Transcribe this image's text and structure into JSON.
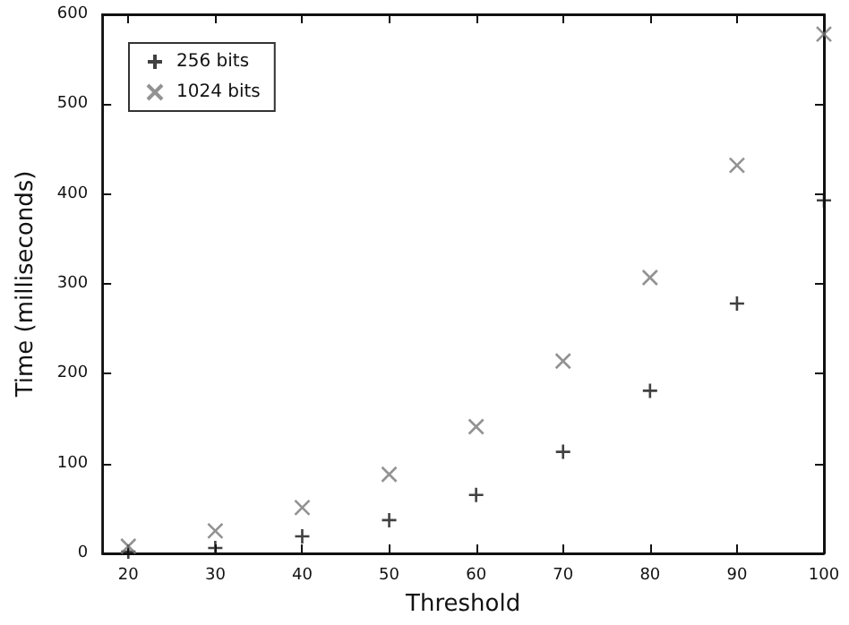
{
  "chart_data": {
    "type": "scatter",
    "xlabel": "Threshold",
    "ylabel": "Time (milliseconds)",
    "x": [
      20,
      30,
      40,
      50,
      60,
      70,
      80,
      90,
      100
    ],
    "series": [
      {
        "name": "256 bits",
        "color": "#111111",
        "values": [
          2,
          6,
          19,
          37,
          65,
          113,
          181,
          278,
          393
        ]
      },
      {
        "name": "1024 bits",
        "color": "#777777",
        "values": [
          8,
          25,
          51,
          88,
          141,
          214,
          307,
          432,
          578
        ]
      }
    ],
    "xlim": [
      17,
      100
    ],
    "xticks": [
      20,
      30,
      40,
      50,
      60,
      70,
      80,
      90,
      100
    ],
    "ylim": [
      0,
      600
    ],
    "yticks": [
      0,
      100,
      200,
      300,
      400,
      500,
      600
    ],
    "grid": false,
    "legend": "top left",
    "marker": "cross"
  }
}
